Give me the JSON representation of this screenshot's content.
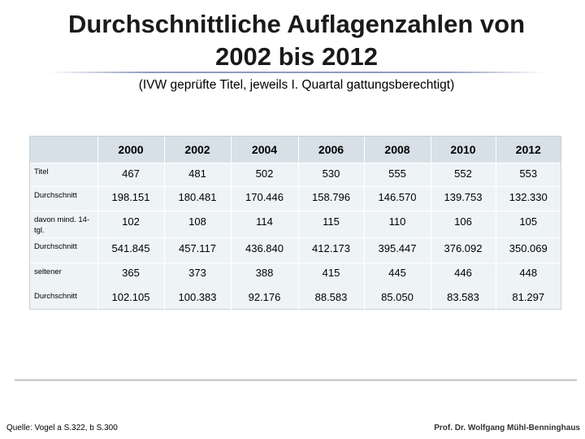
{
  "slide": {
    "title_line1": "Durchschnittliche Auflagenzahlen von",
    "title_line2": "2002 bis 2012",
    "subtitle": "(IVW geprüfte Titel, jeweils I. Quartal gattungsberechtigt)"
  },
  "table": {
    "headers": [
      "",
      "2000",
      "2002",
      "2004",
      "2006",
      "2008",
      "2010",
      "2012"
    ],
    "rows": [
      {
        "label": "Titel",
        "values": [
          "467",
          "481",
          "502",
          "530",
          "555",
          "552",
          "553"
        ]
      },
      {
        "label": "Durchschnitt",
        "values": [
          "198.151",
          "180.481",
          "170.446",
          "158.796",
          "146.570",
          "139.753",
          "132.330"
        ]
      },
      {
        "label": "davon mind. 14-tgl.",
        "values": [
          "102",
          "108",
          "114",
          "115",
          "110",
          "106",
          "105"
        ]
      },
      {
        "label": "Durchschnitt",
        "values": [
          "541.845",
          "457.117",
          "436.840",
          "412.173",
          "395.447",
          "376.092",
          "350.069"
        ]
      },
      {
        "label": "seltener",
        "values": [
          "365",
          "373",
          "388",
          "415",
          "445",
          "446",
          "448"
        ]
      },
      {
        "label": "Durchschnitt",
        "values": [
          "102.105",
          "100.383",
          "92.176",
          "88.583",
          "85.050",
          "83.583",
          "81.297"
        ]
      }
    ]
  },
  "footer": {
    "source": "Quelle: Vogel a S.322, b S.300",
    "author": "Prof. Dr. Wolfgang Mühl-Benninghaus"
  }
}
